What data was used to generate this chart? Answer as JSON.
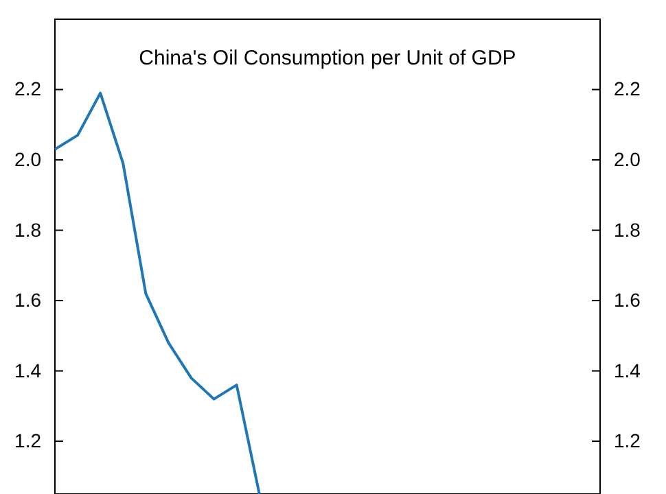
{
  "chart_data": {
    "type": "line",
    "title": "China's Oil Consumption per Unit of GDP",
    "categories": [
      null,
      null,
      null,
      null,
      null,
      null,
      null,
      null,
      null,
      null
    ],
    "series": [
      {
        "color": "#1f77b4",
        "values": [
          2.03,
          2.07,
          2.19,
          1.99,
          1.62,
          1.48,
          1.38,
          1.32,
          1.36,
          1.05
        ]
      }
    ],
    "ylim": [
      1.05,
      2.4
    ],
    "yticks": [
      {
        "value": 1.2,
        "label": "1.2"
      },
      {
        "value": 1.4,
        "label": "1.4"
      },
      {
        "value": 1.6,
        "label": "1.6"
      },
      {
        "value": 1.8,
        "label": "1.8"
      },
      {
        "value": 2.0,
        "label": "2.0"
      },
      {
        "value": 2.2,
        "label": "2.2"
      }
    ],
    "y2lim": [
      1.05,
      2.4
    ],
    "y2ticks": [
      {
        "value": 1.2,
        "label": "1.2"
      },
      {
        "value": 1.4,
        "label": "1.4"
      },
      {
        "value": 1.6,
        "label": "1.6"
      },
      {
        "value": 1.8,
        "label": "1.8"
      },
      {
        "value": 2.0,
        "label": "2.0"
      },
      {
        "value": 2.2,
        "label": "2.2"
      }
    ],
    "tick_labels": "y",
    "grid": false,
    "marker": "none",
    "line_style": "solid"
  }
}
